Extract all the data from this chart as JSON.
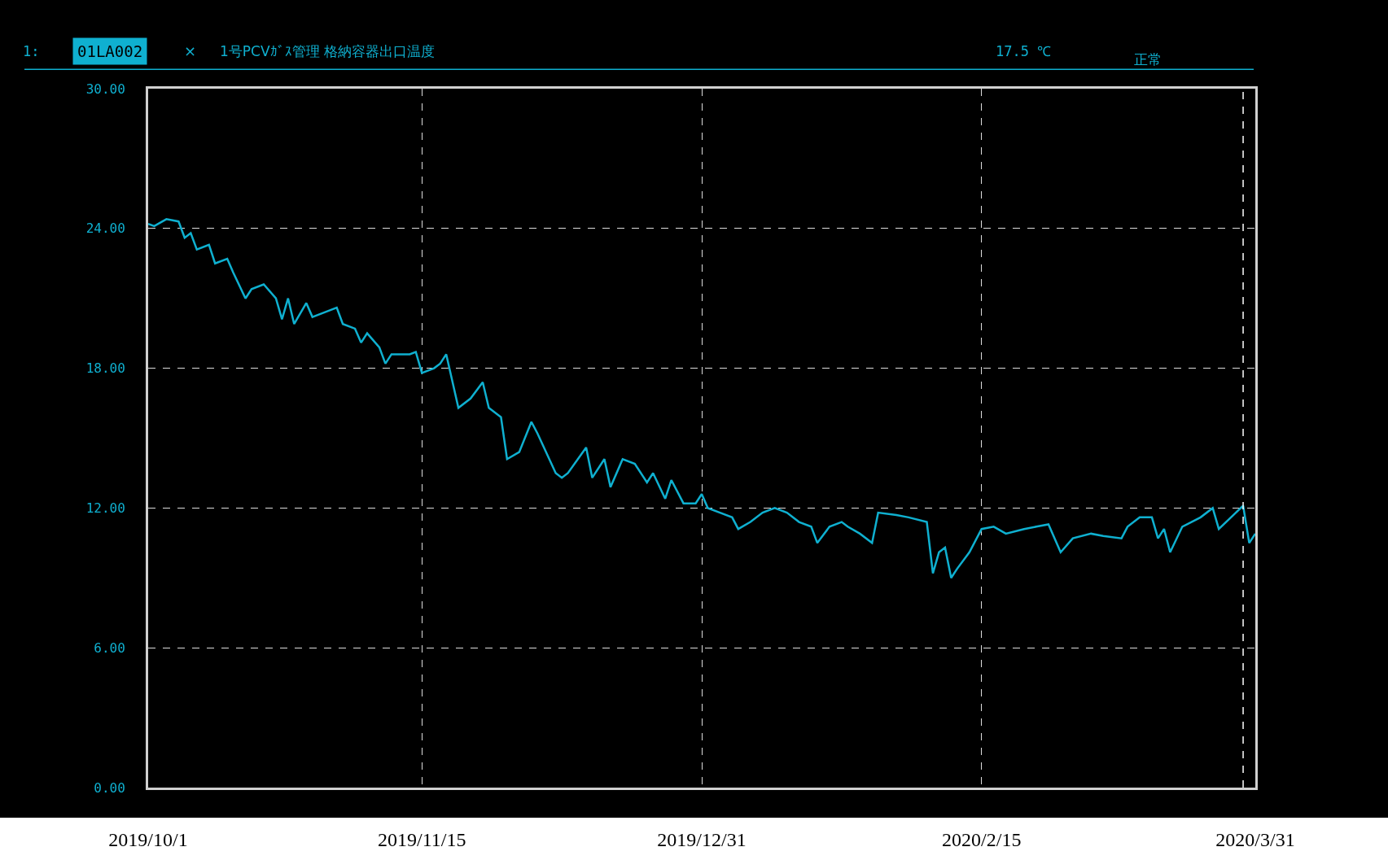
{
  "chart_data": {
    "type": "line",
    "title": "1号PCVｶﾞｽ管理 格納容器出口温度",
    "annotations": [
      "1:",
      "01LA002",
      "×",
      "17.5 ℃",
      "正常"
    ],
    "x": [
      "2019-10-01",
      "2019-10-02",
      "2019-10-04",
      "2019-10-06",
      "2019-10-07",
      "2019-10-08",
      "2019-10-09",
      "2019-10-11",
      "2019-10-12",
      "2019-10-14",
      "2019-10-15",
      "2019-10-17",
      "2019-10-18",
      "2019-10-20",
      "2019-10-22",
      "2019-10-23",
      "2019-10-24",
      "2019-10-25",
      "2019-10-27",
      "2019-10-28",
      "2019-10-30",
      "2019-11-01",
      "2019-11-02",
      "2019-11-04",
      "2019-11-05",
      "2019-11-06",
      "2019-11-08",
      "2019-11-09",
      "2019-11-10",
      "2019-11-13",
      "2019-11-14",
      "2019-11-15",
      "2019-11-17",
      "2019-11-18",
      "2019-11-19",
      "2019-11-21",
      "2019-11-23",
      "2019-11-25",
      "2019-11-26",
      "2019-11-28",
      "2019-11-29",
      "2019-12-01",
      "2019-12-03",
      "2019-12-04",
      "2019-12-07",
      "2019-12-08",
      "2019-12-09",
      "2019-12-12",
      "2019-12-13",
      "2019-12-15",
      "2019-12-16",
      "2019-12-18",
      "2019-12-20",
      "2019-12-22",
      "2019-12-23",
      "2019-12-25",
      "2019-12-26",
      "2019-12-28",
      "2019-12-30",
      "2019-12-31",
      "2020-01-01",
      "2020-01-03",
      "2020-01-05",
      "2020-01-06",
      "2020-01-08",
      "2020-01-10",
      "2020-01-12",
      "2020-01-14",
      "2020-01-16",
      "2020-01-18",
      "2020-01-19",
      "2020-01-21",
      "2020-01-23",
      "2020-01-24",
      "2020-01-26",
      "2020-01-28",
      "2020-01-29",
      "2020-02-01",
      "2020-02-03",
      "2020-02-06",
      "2020-02-07",
      "2020-02-08",
      "2020-02-09",
      "2020-02-10",
      "2020-02-11",
      "2020-02-13",
      "2020-02-15",
      "2020-02-17",
      "2020-02-19",
      "2020-02-22",
      "2020-02-24",
      "2020-02-26",
      "2020-02-28",
      "2020-03-01",
      "2020-03-04",
      "2020-03-06",
      "2020-03-09",
      "2020-03-10",
      "2020-03-12",
      "2020-03-14",
      "2020-03-15",
      "2020-03-16",
      "2020-03-17",
      "2020-03-19",
      "2020-03-22",
      "2020-03-24",
      "2020-03-25",
      "2020-03-27",
      "2020-03-29",
      "2020-03-30",
      "2020-03-31"
    ],
    "series": [
      {
        "color": "#0fb0d0",
        "values": [
          24.2,
          24.1,
          24.4,
          24.3,
          23.6,
          23.8,
          23.1,
          23.3,
          22.5,
          22.7,
          22.1,
          21.0,
          21.4,
          21.6,
          21.0,
          20.1,
          21.0,
          19.9,
          20.8,
          20.2,
          20.4,
          20.6,
          19.9,
          19.7,
          19.1,
          19.5,
          18.9,
          18.2,
          18.6,
          18.6,
          18.7,
          17.8,
          18.0,
          18.2,
          18.6,
          16.3,
          16.7,
          17.4,
          16.3,
          15.9,
          14.1,
          14.4,
          15.7,
          15.2,
          13.5,
          13.3,
          13.5,
          14.6,
          13.3,
          14.1,
          12.9,
          14.1,
          13.9,
          13.1,
          13.5,
          12.4,
          13.2,
          12.2,
          12.2,
          12.6,
          12.0,
          11.8,
          11.6,
          11.1,
          11.4,
          11.8,
          12.0,
          11.8,
          11.4,
          11.2,
          10.5,
          11.2,
          11.4,
          11.2,
          10.9,
          10.5,
          11.8,
          11.7,
          11.6,
          11.4,
          9.2,
          10.1,
          10.3,
          9.0,
          9.4,
          10.1,
          11.1,
          11.2,
          10.9,
          11.1,
          11.2,
          11.3,
          10.1,
          10.7,
          10.9,
          10.8,
          10.7,
          11.2,
          11.6,
          11.6,
          10.7,
          11.1,
          10.1,
          11.2,
          11.6,
          12.0,
          11.1,
          11.6,
          12.1,
          10.5,
          10.9
        ]
      }
    ],
    "xlim": [
      "2019-10-01",
      "2020-03-31"
    ],
    "xticks": [
      {
        "value": "2019-10-01",
        "label": "2019/10/1"
      },
      {
        "value": "2019-11-15",
        "label": "2019/11/15"
      },
      {
        "value": "2019-12-31",
        "label": "2019/12/31"
      },
      {
        "value": "2020-02-15",
        "label": "2020/2/15"
      },
      {
        "value": "2020-03-31",
        "label": "2020/3/31"
      }
    ],
    "ylim": [
      0,
      30
    ],
    "yticks": [
      {
        "value": 0,
        "label": "0.00"
      },
      {
        "value": 6,
        "label": "6.00"
      },
      {
        "value": 12,
        "label": "12.00"
      },
      {
        "value": 18,
        "label": "18.00"
      },
      {
        "value": 24,
        "label": "24.00"
      },
      {
        "value": 30,
        "label": "30.00"
      }
    ],
    "ref_lines": [
      {
        "axis": "x",
        "value": "2020-03-29",
        "color": "#ffffff",
        "line_style": "dashed"
      }
    ],
    "grid": true,
    "marker": "none",
    "line_style": "solid"
  }
}
